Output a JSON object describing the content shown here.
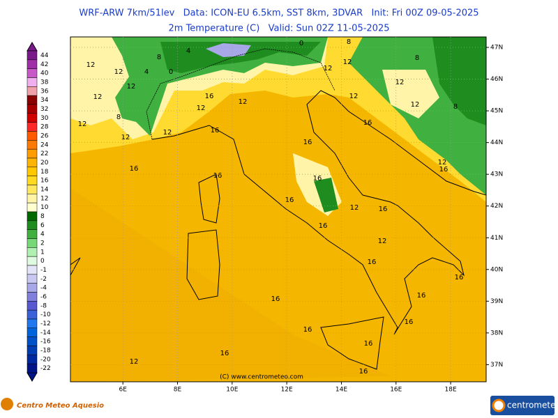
{
  "header": {
    "line1": "WRF-ARW 7km/51lev   Data: ICON-EU 6.5km, SST 8km, 3DVAR   Init: Fri 00Z 09-05-2025",
    "line2": "2m Temperature (C)   Valid: Sun 02Z 11-05-2025"
  },
  "colorbar": {
    "levels": [
      44,
      42,
      40,
      38,
      36,
      34,
      32,
      30,
      28,
      26,
      24,
      22,
      20,
      18,
      16,
      14,
      12,
      10,
      8,
      6,
      4,
      2,
      1,
      0,
      -1,
      -2,
      -4,
      -6,
      -8,
      -10,
      -12,
      -14,
      -16,
      -18,
      -20,
      -22
    ],
    "colors": [
      "#7a1a8a",
      "#a030a8",
      "#c858c8",
      "#f0b0f0",
      "#f0a0a8",
      "#8b0000",
      "#a80000",
      "#d00000",
      "#ff2828",
      "#ff5a00",
      "#ff7a00",
      "#ff9c00",
      "#ffb400",
      "#ffc800",
      "#ffda20",
      "#ffe860",
      "#fff4a8",
      "#ffffd0",
      "#006a00",
      "#1e8c1e",
      "#40b040",
      "#78d878",
      "#b0f0b0",
      "#e0fae0",
      "#e4e4f8",
      "#c8c8f0",
      "#a8a8e8",
      "#8080dc",
      "#5858d0",
      "#3c60d8",
      "#2078f0",
      "#0064dc",
      "#0050c8",
      "#003cb4",
      "#0028a0",
      "#001488"
    ]
  },
  "map": {
    "xlim": [
      4.08,
      19.3
    ],
    "ylim": [
      36.46,
      47.33
    ],
    "lon_ticks": [
      {
        "value": 6,
        "label": "6E"
      },
      {
        "value": 8,
        "label": "8E"
      },
      {
        "value": 10,
        "label": "10E"
      },
      {
        "value": 12,
        "label": "12E"
      },
      {
        "value": 14,
        "label": "14E"
      },
      {
        "value": 16,
        "label": "16E"
      },
      {
        "value": 18,
        "label": "18E"
      }
    ],
    "lat_ticks": [
      {
        "value": 37,
        "label": "37N"
      },
      {
        "value": 38,
        "label": "38N"
      },
      {
        "value": 39,
        "label": "39N"
      },
      {
        "value": 40,
        "label": "40N"
      },
      {
        "value": 41,
        "label": "41N"
      },
      {
        "value": 42,
        "label": "42N"
      },
      {
        "value": 43,
        "label": "43N"
      },
      {
        "value": 44,
        "label": "44N"
      },
      {
        "value": 45,
        "label": "45N"
      },
      {
        "value": 46,
        "label": "46N"
      },
      {
        "value": 47,
        "label": "47N"
      }
    ],
    "contour_labels": [
      12,
      12,
      12,
      12,
      12,
      8,
      0,
      4,
      8,
      4,
      0,
      8,
      12,
      12,
      16,
      12,
      16,
      12,
      12,
      16,
      12,
      12,
      8,
      12,
      8,
      16,
      16,
      12,
      16,
      16,
      16,
      16,
      12,
      12,
      16,
      16,
      12,
      16,
      16,
      16,
      16,
      16,
      16,
      12,
      16,
      16,
      16
    ],
    "copyright": "(C) www.centrometeo.com"
  },
  "footer": {
    "left_logo": "Centro Meteo Aquesio",
    "right_logo": "centrometeo"
  }
}
